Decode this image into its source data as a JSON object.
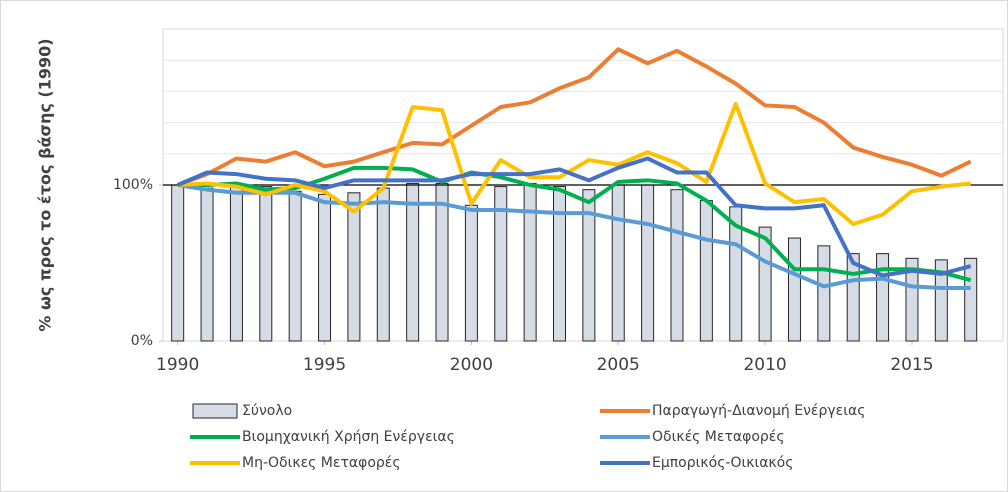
{
  "chart_data": {
    "type": "combo",
    "y_axis_label": "% ως προς το έτος βάσης (1990)",
    "x": [
      1990,
      1991,
      1992,
      1993,
      1994,
      1995,
      1996,
      1997,
      1998,
      1999,
      2000,
      2001,
      2002,
      2003,
      2004,
      2005,
      2006,
      2007,
      2008,
      2009,
      2010,
      2011,
      2012,
      2013,
      2014,
      2015,
      2016,
      2017
    ],
    "xlim": [
      1989.5,
      2018.1
    ],
    "xticks": [
      1990,
      1995,
      2000,
      2005,
      2010,
      2015
    ],
    "ylim": [
      0,
      200
    ],
    "yticks": [
      {
        "value": 0,
        "label": "0%"
      },
      {
        "value": 100,
        "label": "100%"
      }
    ],
    "gridlines": [
      120,
      140,
      160,
      180,
      200
    ],
    "reference_line": 100,
    "series": [
      {
        "name": "Σύνολο",
        "type": "bar",
        "color": "#d6dce5",
        "values": [
          100,
          98,
          100,
          99,
          96,
          94,
          95,
          98,
          101,
          101,
          87,
          99,
          101,
          99,
          97,
          100,
          100,
          97,
          90,
          86,
          73,
          66,
          61,
          56,
          56,
          53,
          52,
          53
        ]
      },
      {
        "name": "Παραγωγή-Διανομή Ενέργειας",
        "type": "line",
        "color": "#ed7d31",
        "values": [
          100,
          107,
          117,
          115,
          121,
          112,
          115,
          121,
          127,
          126,
          138,
          150,
          153,
          162,
          169,
          187,
          178,
          186,
          176,
          165,
          151,
          150,
          140,
          124,
          118,
          113,
          106,
          115
        ]
      },
      {
        "name": "Βιομηχανική Χρήση Ενέργειας",
        "type": "line",
        "color": "#00b050",
        "values": [
          100,
          100,
          101,
          97,
          98,
          104,
          111,
          111,
          110,
          102,
          108,
          105,
          100,
          97,
          89,
          102,
          103,
          101,
          90,
          74,
          66,
          46,
          46,
          43,
          46,
          46,
          44,
          39
        ]
      },
      {
        "name": "Οδικές Μεταφορές",
        "type": "line",
        "color": "#5b9bd5",
        "values": [
          100,
          97,
          95,
          95,
          95,
          89,
          88,
          89,
          88,
          88,
          84,
          84,
          83,
          82,
          82,
          78,
          75,
          70,
          65,
          62,
          51,
          43,
          35,
          39,
          40,
          35,
          34,
          34
        ]
      },
      {
        "name": "Μη-Οδικες Μεταφορές",
        "type": "line",
        "color": "#ffc000",
        "values": [
          100,
          101,
          99,
          94,
          100,
          96,
          83,
          98,
          150,
          148,
          88,
          116,
          105,
          105,
          116,
          113,
          121,
          114,
          102,
          152,
          101,
          89,
          91,
          75,
          81,
          96,
          99,
          101
        ]
      },
      {
        "name": "Εμπορικός-Οικιακός",
        "type": "line",
        "color": "#4472c4",
        "values": [
          100,
          108,
          107,
          104,
          103,
          98,
          103,
          103,
          103,
          103,
          107,
          107,
          107,
          110,
          103,
          111,
          117,
          108,
          108,
          87,
          85,
          85,
          87,
          50,
          42,
          45,
          43,
          48
        ]
      }
    ]
  }
}
